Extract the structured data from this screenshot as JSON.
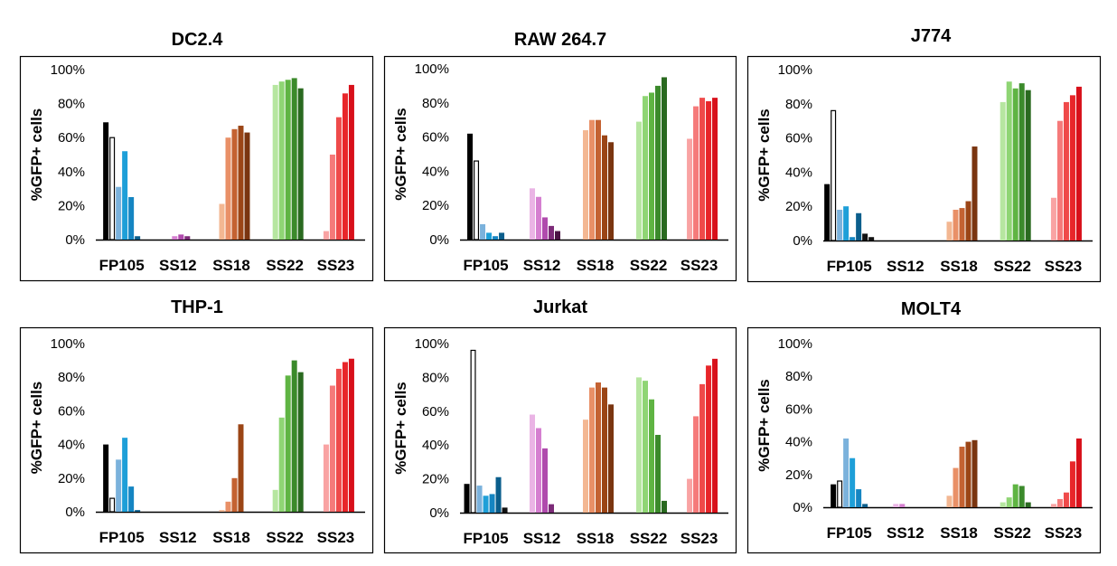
{
  "chart_data": [
    {
      "type": "bar",
      "title": "DC2.4",
      "ylabel": "%GFP+ cells",
      "ylim": [
        0,
        100
      ],
      "yticks": [
        "0%",
        "20%",
        "40%",
        "60%",
        "80%",
        "100%"
      ],
      "categories": [
        "FP105",
        "SS12",
        "SS18",
        "SS22",
        "SS23"
      ],
      "values": [
        [
          69,
          60,
          31,
          52,
          25,
          2
        ],
        [
          0,
          0,
          2,
          3,
          2,
          0
        ],
        [
          0,
          21,
          60,
          65,
          67,
          63
        ],
        [
          0,
          91,
          93,
          94,
          95,
          89
        ],
        [
          0,
          5,
          50,
          72,
          86,
          91
        ]
      ]
    },
    {
      "type": "bar",
      "title": "RAW 264.7",
      "ylabel": "%GFP+ cells",
      "ylim": [
        0,
        100
      ],
      "yticks": [
        "0%",
        "20%",
        "40%",
        "60%",
        "80%",
        "100%"
      ],
      "categories": [
        "FP105",
        "SS12",
        "SS18",
        "SS22",
        "SS23"
      ],
      "values": [
        [
          62,
          46,
          9,
          4,
          2,
          4
        ],
        [
          0,
          30,
          25,
          13,
          8,
          5
        ],
        [
          0,
          64,
          70,
          70,
          61,
          57
        ],
        [
          0,
          69,
          84,
          86,
          90,
          95
        ],
        [
          0,
          59,
          78,
          83,
          81,
          83
        ]
      ]
    },
    {
      "type": "bar",
      "title": "J774",
      "ylabel": "%GFP+ cells",
      "ylim": [
        0,
        100
      ],
      "yticks": [
        "0%",
        "20%",
        "40%",
        "60%",
        "80%",
        "100%"
      ],
      "categories": [
        "FP105",
        "SS12",
        "SS18",
        "SS22",
        "SS23"
      ],
      "values": [
        [
          33,
          76,
          18,
          20,
          2,
          16,
          4,
          2
        ],
        [
          0,
          0,
          0,
          0,
          0,
          0
        ],
        [
          0,
          11,
          18,
          19,
          23,
          55
        ],
        [
          0,
          81,
          93,
          89,
          92,
          88
        ],
        [
          0,
          25,
          70,
          81,
          85,
          90
        ]
      ]
    },
    {
      "type": "bar",
      "title": "THP-1",
      "ylabel": "%GFP+ cells",
      "ylim": [
        0,
        100
      ],
      "yticks": [
        "0%",
        "20%",
        "40%",
        "60%",
        "80%",
        "100%"
      ],
      "categories": [
        "FP105",
        "SS12",
        "SS18",
        "SS22",
        "SS23"
      ],
      "values": [
        [
          40,
          8,
          31,
          44,
          15,
          1
        ],
        [
          0,
          0,
          0,
          0,
          0,
          0
        ],
        [
          0,
          1,
          6,
          20,
          52,
          0
        ],
        [
          0,
          13,
          56,
          81,
          90,
          83
        ],
        [
          0,
          40,
          75,
          85,
          89,
          91
        ]
      ]
    },
    {
      "type": "bar",
      "title": "Jurkat",
      "ylabel": "%GFP+ cells",
      "ylim": [
        0,
        100
      ],
      "yticks": [
        "0%",
        "20%",
        "40%",
        "60%",
        "80%",
        "100%"
      ],
      "categories": [
        "FP105",
        "SS12",
        "SS18",
        "SS22",
        "SS23"
      ],
      "values": [
        [
          17,
          96,
          16,
          10,
          11,
          21,
          3
        ],
        [
          0,
          58,
          50,
          38,
          5,
          0
        ],
        [
          0,
          55,
          74,
          77,
          74,
          64
        ],
        [
          0,
          80,
          78,
          67,
          46,
          7
        ],
        [
          0,
          20,
          57,
          76,
          87,
          91
        ]
      ]
    },
    {
      "type": "bar",
      "title": "MOLT4",
      "ylabel": "%GFP+ cells",
      "ylim": [
        0,
        100
      ],
      "yticks": [
        "0%",
        "20%",
        "40%",
        "60%",
        "80%",
        "100%"
      ],
      "categories": [
        "FP105",
        "SS12",
        "SS18",
        "SS22",
        "SS23"
      ],
      "values": [
        [
          14,
          16,
          42,
          30,
          11,
          2
        ],
        [
          0,
          2,
          2,
          0,
          0,
          0
        ],
        [
          0,
          7,
          24,
          37,
          40,
          41
        ],
        [
          0,
          3,
          6,
          14,
          13,
          3
        ],
        [
          0,
          2,
          5,
          9,
          28,
          42
        ]
      ]
    }
  ],
  "colors": {
    "FP105": [
      "#000000",
      "#ffffff",
      "#7bb2dc",
      "#1e9fd8",
      "#1585c2",
      "#0b5e8c",
      "#111111",
      "#111111"
    ],
    "SS12": [
      "#f3d3ef",
      "#eab4e5",
      "#d57fd0",
      "#b04bad",
      "#7c2b78",
      "#4b1445"
    ],
    "SS18": [
      "#f7d7c4",
      "#f3b792",
      "#e99067",
      "#c46232",
      "#9b4516",
      "#7a3510"
    ],
    "SS22": [
      "#d9f2cc",
      "#b6e6a0",
      "#8fd574",
      "#5fb443",
      "#3b8a2b",
      "#2a6a20"
    ],
    "SS23": [
      "#fdd6d6",
      "#f9a3a3",
      "#f57a7a",
      "#ef4a4a",
      "#e8262a",
      "#d8101a"
    ]
  }
}
